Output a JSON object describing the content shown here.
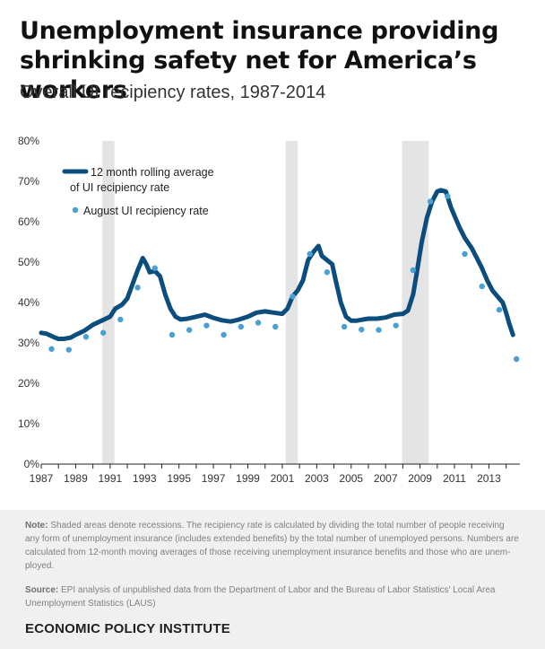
{
  "title": "Unemployment insurance providing shrinking safety net for America’s workers",
  "subtitle": "Overall UI recipiency rates, 1987-2014",
  "colors": {
    "line": "#0b4d7d",
    "dots": "#4a9fd3",
    "recession": "#e4e4e4",
    "footer_bg": "#f0f0f0"
  },
  "chart_data": {
    "type": "line",
    "x_range": [
      1987,
      2014.8
    ],
    "ylim": [
      0,
      80
    ],
    "grid": false,
    "legend_position": "top-left",
    "y_ticks": [
      "0%",
      "10%",
      "20%",
      "30%",
      "40%",
      "50%",
      "60%",
      "70%",
      "80%"
    ],
    "x_ticks": [
      "1987",
      "1989",
      "1991",
      "1993",
      "1995",
      "1997",
      "1999",
      "2001",
      "2003",
      "2005",
      "2007",
      "2009",
      "2011",
      "2013"
    ],
    "recessions": [
      [
        1990.55,
        1991.25
      ],
      [
        2001.2,
        2001.9
      ],
      [
        2007.95,
        2009.5
      ]
    ],
    "series": [
      {
        "name": "12 month rolling average of UI recipiency rate",
        "style": "line",
        "x": [
          1987.0,
          1987.3,
          1987.7,
          1988.0,
          1988.3,
          1988.7,
          1989.0,
          1989.5,
          1990.0,
          1990.5,
          1991.0,
          1991.3,
          1991.7,
          1992.0,
          1992.3,
          1992.6,
          1992.9,
          1993.1,
          1993.3,
          1993.6,
          1993.9,
          1994.2,
          1994.5,
          1994.8,
          1995.1,
          1995.5,
          1996.0,
          1996.5,
          1997.0,
          1997.5,
          1998.0,
          1998.5,
          1999.0,
          1999.5,
          2000.0,
          2000.5,
          2001.0,
          2001.3,
          2001.6,
          2001.9,
          2002.2,
          2002.5,
          2002.8,
          2003.1,
          2003.3,
          2003.6,
          2003.9,
          2004.1,
          2004.4,
          2004.7,
          2005.0,
          2005.3,
          2005.7,
          2006.0,
          2006.5,
          2007.0,
          2007.5,
          2008.0,
          2008.3,
          2008.6,
          2008.8,
          2009.1,
          2009.4,
          2009.7,
          2010.0,
          2010.2,
          2010.5,
          2010.8,
          2011.0,
          2011.3,
          2011.6,
          2012.0,
          2012.3,
          2012.6,
          2012.9,
          2013.2,
          2013.5,
          2013.8,
          2014.0,
          2014.2,
          2014.4
        ],
        "y": [
          32.5,
          32.3,
          31.5,
          31.0,
          31.0,
          31.3,
          32.0,
          33.0,
          34.5,
          35.5,
          36.5,
          38.5,
          39.5,
          41.0,
          44.5,
          48.0,
          51.0,
          49.5,
          47.5,
          47.8,
          46.5,
          42.0,
          38.5,
          36.5,
          35.8,
          36.0,
          36.5,
          37.0,
          36.2,
          35.6,
          35.3,
          35.8,
          36.5,
          37.5,
          37.8,
          37.5,
          37.2,
          38.5,
          41.5,
          43.0,
          45.5,
          50.5,
          52.5,
          54.0,
          51.5,
          50.5,
          49.5,
          45.5,
          40.0,
          36.5,
          35.5,
          35.5,
          35.8,
          36.0,
          36.0,
          36.3,
          37.0,
          37.2,
          38.0,
          42.0,
          47.0,
          55.0,
          61.0,
          65.0,
          67.5,
          67.8,
          67.5,
          63.5,
          61.5,
          58.5,
          56.0,
          53.5,
          51.0,
          48.5,
          45.5,
          43.0,
          41.5,
          40.0,
          37.5,
          34.5,
          32.0
        ]
      },
      {
        "name": "August UI recipiency rate",
        "style": "dots",
        "x": [
          1987.6,
          1988.6,
          1989.6,
          1990.6,
          1991.6,
          1992.6,
          1993.6,
          1994.6,
          1995.6,
          1996.6,
          1997.6,
          1998.6,
          1999.6,
          2000.6,
          2001.6,
          2002.6,
          2003.6,
          2004.6,
          2005.6,
          2006.6,
          2007.6,
          2008.6,
          2009.6,
          2010.6,
          2011.6,
          2012.6,
          2013.6,
          2014.6
        ],
        "y": [
          28.5,
          28.3,
          31.5,
          32.5,
          35.8,
          43.7,
          48.5,
          32.0,
          33.2,
          34.3,
          32.0,
          34.0,
          35.0,
          34.0,
          41.5,
          52.0,
          47.5,
          34.0,
          33.3,
          33.2,
          34.3,
          48.0,
          65.0,
          66.3,
          52.0,
          44.0,
          38.2,
          26.0
        ]
      }
    ]
  },
  "legend": {
    "line_label_line1": "12 month rolling average",
    "line_label_line2": "of UI recipiency rate",
    "dot_label": "August UI recipiency rate"
  },
  "footer": {
    "note_label": "Note:",
    "note_text": "Shaded areas denote recessions. The recipiency rate is calculated by dividing the total number of people receiving any form of unemployment insurance (includes extended benefits) by the total number of unemployed persons. Numbers are calculated from 12-month moving averages of those receiving unemployment insurance benefits and those who are unem-ployed.",
    "source_label": "Source:",
    "source_text": "EPI analysis of unpublished data from the Department of Labor and the Bureau of Labor Statistics' Local Area Unemployment Statistics (LAUS)",
    "brand": "ECONOMIC POLICY INSTITUTE"
  }
}
